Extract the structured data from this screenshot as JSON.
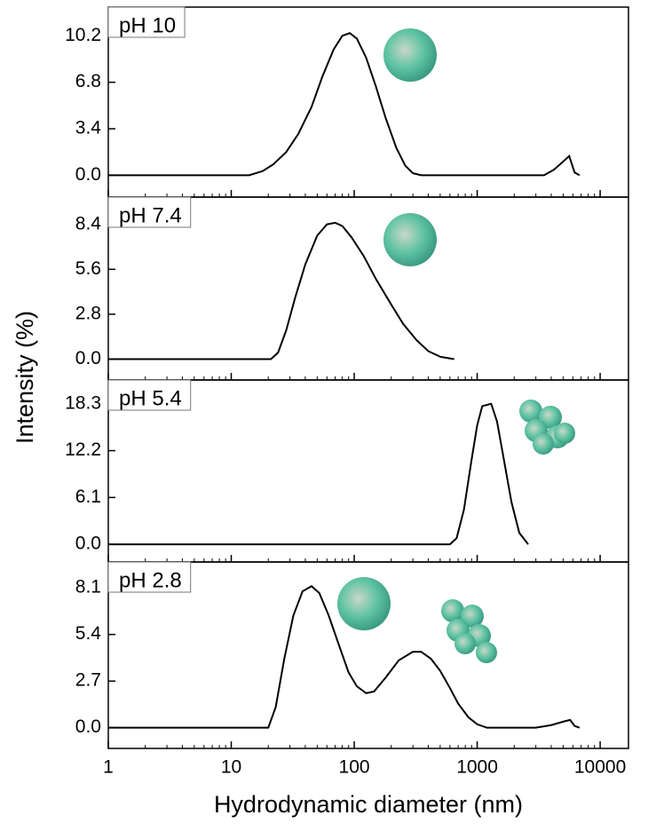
{
  "xlabel": "Hydrodynamic diameter (nm)",
  "ylabel": "Intensity (%)",
  "chart_data": [
    {
      "type": "line",
      "label": "pH 10",
      "color": "#000000",
      "log_x": true,
      "x": [
        1,
        14,
        18,
        22,
        28,
        35,
        45,
        55,
        68,
        80,
        92,
        105,
        125,
        150,
        180,
        220,
        260,
        300,
        350,
        3500,
        4200,
        5000,
        5600,
        6200,
        6800
      ],
      "values": [
        0,
        0,
        0.3,
        0.8,
        1.7,
        3.0,
        5.0,
        7.2,
        9.2,
        10.2,
        10.4,
        10.0,
        8.6,
        6.5,
        4.2,
        2.0,
        0.7,
        0.15,
        0,
        0,
        0.4,
        1.0,
        1.4,
        0.2,
        0
      ],
      "xlim": [
        1,
        17000
      ],
      "xticks": [
        1,
        10,
        100,
        1000,
        10000
      ],
      "ylim": [
        -1.6,
        12.3
      ],
      "yticks": [
        {
          "value": 0,
          "label": "0.0"
        },
        3.4,
        6.8,
        10.2
      ]
    },
    {
      "type": "line",
      "label": "pH 7.4",
      "color": "#000000",
      "log_x": true,
      "x": [
        1,
        21,
        24,
        28,
        33,
        40,
        50,
        60,
        70,
        80,
        95,
        120,
        150,
        200,
        250,
        320,
        400,
        500,
        650
      ],
      "values": [
        0,
        0,
        0.4,
        1.8,
        3.8,
        5.9,
        7.7,
        8.4,
        8.5,
        8.3,
        7.6,
        6.4,
        5.0,
        3.4,
        2.2,
        1.2,
        0.5,
        0.15,
        0
      ],
      "xlim": [
        1,
        17000
      ],
      "xticks": [
        1,
        10,
        100,
        1000,
        10000
      ],
      "ylim": [
        -1.3,
        10.1
      ],
      "yticks": [
        {
          "value": 0,
          "label": "0.0"
        },
        2.8,
        5.6,
        8.4
      ]
    },
    {
      "type": "line",
      "label": "pH 5.4",
      "color": "#000000",
      "log_x": true,
      "x": [
        1,
        600,
        680,
        780,
        900,
        1000,
        1100,
        1300,
        1450,
        1650,
        1900,
        2200,
        2600
      ],
      "values": [
        0,
        0,
        0.8,
        4.5,
        11,
        15.5,
        18.0,
        18.3,
        16,
        11,
        5.5,
        1.5,
        0
      ],
      "xlim": [
        1,
        17000
      ],
      "xticks": [
        1,
        10,
        100,
        1000,
        10000
      ],
      "ylim": [
        -2.3,
        21.4
      ],
      "yticks": [
        {
          "value": 0,
          "label": "0.0"
        },
        6.1,
        12.2,
        18.3
      ]
    },
    {
      "type": "line",
      "label": "pH 2.8",
      "color": "#000000",
      "log_x": true,
      "x": [
        1,
        20,
        23,
        27,
        32,
        38,
        45,
        52,
        62,
        75,
        90,
        105,
        125,
        145,
        180,
        230,
        300,
        350,
        420,
        500,
        600,
        700,
        850,
        1000,
        1200,
        3000,
        4000,
        5000,
        5700,
        6200,
        6800
      ],
      "values": [
        0,
        0,
        1.2,
        4.0,
        6.5,
        7.9,
        8.2,
        7.8,
        6.5,
        4.8,
        3.2,
        2.4,
        2.0,
        2.1,
        2.9,
        3.9,
        4.4,
        4.4,
        4.0,
        3.3,
        2.3,
        1.4,
        0.6,
        0.2,
        0,
        0,
        0.15,
        0.35,
        0.45,
        0.1,
        0
      ],
      "xlim": [
        1,
        17000
      ],
      "xticks": [
        1,
        10,
        100,
        1000,
        10000
      ],
      "ylim": [
        -1.2,
        9.6
      ],
      "yticks": [
        {
          "value": 0,
          "label": "0.0"
        },
        2.7,
        5.4,
        8.1
      ]
    }
  ]
}
